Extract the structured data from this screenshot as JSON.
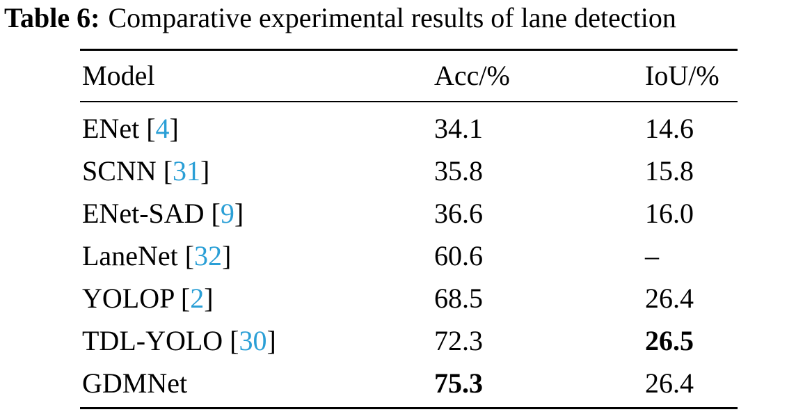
{
  "caption": {
    "label": "Table 6:",
    "text": "Comparative experimental results of lane detection"
  },
  "table": {
    "headers": {
      "model": "Model",
      "acc": "Acc/%",
      "iou": "IoU/%"
    },
    "rows": [
      {
        "model": "ENet",
        "ref": "4",
        "acc": "34.1",
        "iou": "14.6",
        "best_acc": false,
        "best_iou": false
      },
      {
        "model": "SCNN",
        "ref": "31",
        "acc": "35.8",
        "iou": "15.8",
        "best_acc": false,
        "best_iou": false
      },
      {
        "model": "ENet-SAD",
        "ref": "9",
        "acc": "36.6",
        "iou": "16.0",
        "best_acc": false,
        "best_iou": false
      },
      {
        "model": "LaneNet",
        "ref": "32",
        "acc": "60.6",
        "iou": "–",
        "best_acc": false,
        "best_iou": false
      },
      {
        "model": "YOLOP",
        "ref": "2",
        "acc": "68.5",
        "iou": "26.4",
        "best_acc": false,
        "best_iou": false
      },
      {
        "model": "TDL-YOLO",
        "ref": "30",
        "acc": "72.3",
        "iou": "26.5",
        "best_acc": false,
        "best_iou": true
      },
      {
        "model": "GDMNet",
        "ref": "",
        "acc": "75.3",
        "iou": "26.4",
        "best_acc": true,
        "best_iou": false
      }
    ]
  },
  "colors": {
    "citation_link": "#2a9fd6",
    "text": "#000000"
  }
}
